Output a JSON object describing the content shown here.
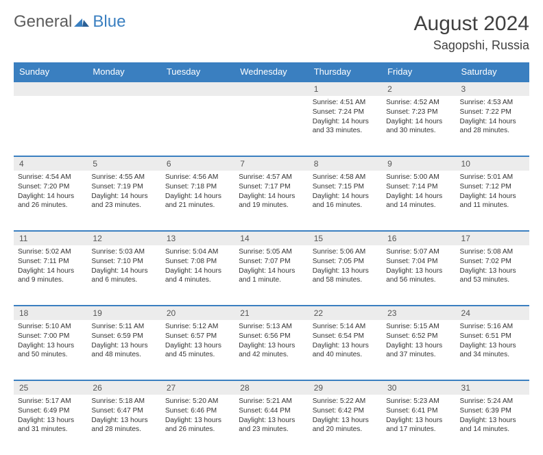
{
  "brand": {
    "word1": "General",
    "word2": "Blue",
    "accent": "#3a7fc0",
    "gray": "#5c5c5c"
  },
  "title": "August 2024",
  "location": "Sagopshi, Russia",
  "colors": {
    "header_bg": "#3a7fc0",
    "header_fg": "#ffffff",
    "daynum_bg": "#ececec",
    "rule": "#3a7fc0",
    "text": "#333333"
  },
  "weekdays": [
    "Sunday",
    "Monday",
    "Tuesday",
    "Wednesday",
    "Thursday",
    "Friday",
    "Saturday"
  ],
  "weeks": [
    [
      null,
      null,
      null,
      null,
      {
        "n": 1,
        "sunrise": "4:51 AM",
        "sunset": "7:24 PM",
        "day": "14 hours and 33 minutes."
      },
      {
        "n": 2,
        "sunrise": "4:52 AM",
        "sunset": "7:23 PM",
        "day": "14 hours and 30 minutes."
      },
      {
        "n": 3,
        "sunrise": "4:53 AM",
        "sunset": "7:22 PM",
        "day": "14 hours and 28 minutes."
      }
    ],
    [
      {
        "n": 4,
        "sunrise": "4:54 AM",
        "sunset": "7:20 PM",
        "day": "14 hours and 26 minutes."
      },
      {
        "n": 5,
        "sunrise": "4:55 AM",
        "sunset": "7:19 PM",
        "day": "14 hours and 23 minutes."
      },
      {
        "n": 6,
        "sunrise": "4:56 AM",
        "sunset": "7:18 PM",
        "day": "14 hours and 21 minutes."
      },
      {
        "n": 7,
        "sunrise": "4:57 AM",
        "sunset": "7:17 PM",
        "day": "14 hours and 19 minutes."
      },
      {
        "n": 8,
        "sunrise": "4:58 AM",
        "sunset": "7:15 PM",
        "day": "14 hours and 16 minutes."
      },
      {
        "n": 9,
        "sunrise": "5:00 AM",
        "sunset": "7:14 PM",
        "day": "14 hours and 14 minutes."
      },
      {
        "n": 10,
        "sunrise": "5:01 AM",
        "sunset": "7:12 PM",
        "day": "14 hours and 11 minutes."
      }
    ],
    [
      {
        "n": 11,
        "sunrise": "5:02 AM",
        "sunset": "7:11 PM",
        "day": "14 hours and 9 minutes."
      },
      {
        "n": 12,
        "sunrise": "5:03 AM",
        "sunset": "7:10 PM",
        "day": "14 hours and 6 minutes."
      },
      {
        "n": 13,
        "sunrise": "5:04 AM",
        "sunset": "7:08 PM",
        "day": "14 hours and 4 minutes."
      },
      {
        "n": 14,
        "sunrise": "5:05 AM",
        "sunset": "7:07 PM",
        "day": "14 hours and 1 minute."
      },
      {
        "n": 15,
        "sunrise": "5:06 AM",
        "sunset": "7:05 PM",
        "day": "13 hours and 58 minutes."
      },
      {
        "n": 16,
        "sunrise": "5:07 AM",
        "sunset": "7:04 PM",
        "day": "13 hours and 56 minutes."
      },
      {
        "n": 17,
        "sunrise": "5:08 AM",
        "sunset": "7:02 PM",
        "day": "13 hours and 53 minutes."
      }
    ],
    [
      {
        "n": 18,
        "sunrise": "5:10 AM",
        "sunset": "7:00 PM",
        "day": "13 hours and 50 minutes."
      },
      {
        "n": 19,
        "sunrise": "5:11 AM",
        "sunset": "6:59 PM",
        "day": "13 hours and 48 minutes."
      },
      {
        "n": 20,
        "sunrise": "5:12 AM",
        "sunset": "6:57 PM",
        "day": "13 hours and 45 minutes."
      },
      {
        "n": 21,
        "sunrise": "5:13 AM",
        "sunset": "6:56 PM",
        "day": "13 hours and 42 minutes."
      },
      {
        "n": 22,
        "sunrise": "5:14 AM",
        "sunset": "6:54 PM",
        "day": "13 hours and 40 minutes."
      },
      {
        "n": 23,
        "sunrise": "5:15 AM",
        "sunset": "6:52 PM",
        "day": "13 hours and 37 minutes."
      },
      {
        "n": 24,
        "sunrise": "5:16 AM",
        "sunset": "6:51 PM",
        "day": "13 hours and 34 minutes."
      }
    ],
    [
      {
        "n": 25,
        "sunrise": "5:17 AM",
        "sunset": "6:49 PM",
        "day": "13 hours and 31 minutes."
      },
      {
        "n": 26,
        "sunrise": "5:18 AM",
        "sunset": "6:47 PM",
        "day": "13 hours and 28 minutes."
      },
      {
        "n": 27,
        "sunrise": "5:20 AM",
        "sunset": "6:46 PM",
        "day": "13 hours and 26 minutes."
      },
      {
        "n": 28,
        "sunrise": "5:21 AM",
        "sunset": "6:44 PM",
        "day": "13 hours and 23 minutes."
      },
      {
        "n": 29,
        "sunrise": "5:22 AM",
        "sunset": "6:42 PM",
        "day": "13 hours and 20 minutes."
      },
      {
        "n": 30,
        "sunrise": "5:23 AM",
        "sunset": "6:41 PM",
        "day": "13 hours and 17 minutes."
      },
      {
        "n": 31,
        "sunrise": "5:24 AM",
        "sunset": "6:39 PM",
        "day": "13 hours and 14 minutes."
      }
    ]
  ],
  "labels": {
    "sunrise": "Sunrise:",
    "sunset": "Sunset:",
    "daylight": "Daylight:"
  }
}
